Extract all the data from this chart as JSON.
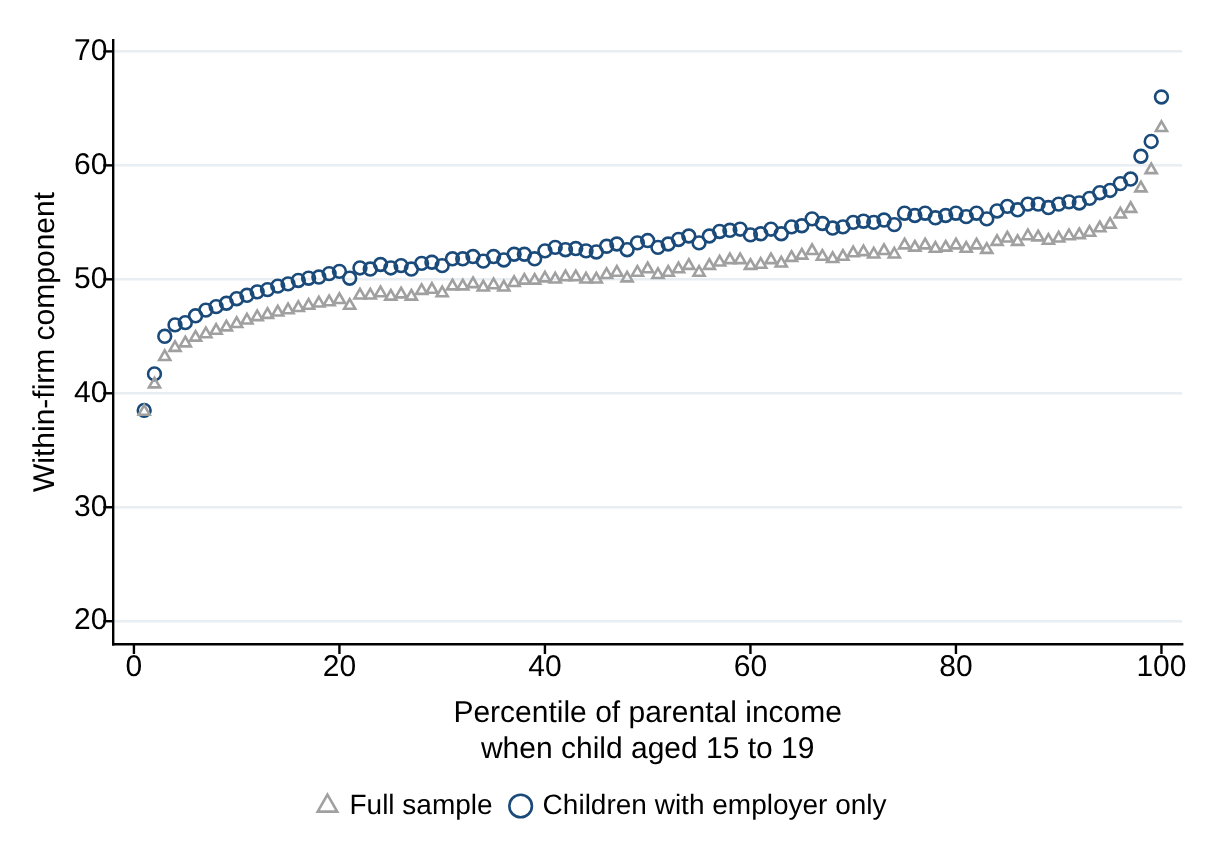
{
  "chart_data": {
    "type": "scatter",
    "xlabel": "Percentile of parental income\nwhen child aged 15 to 19",
    "ylabel": "Within-firm component",
    "xlim": [
      -2,
      102
    ],
    "xticks": [
      0,
      20,
      40,
      60,
      80,
      100
    ],
    "ylim": [
      18,
      71
    ],
    "yticks": [
      20,
      30,
      40,
      50,
      60,
      70
    ],
    "grid": "y",
    "legend": "bottom",
    "x": [
      1,
      2,
      3,
      4,
      5,
      6,
      7,
      8,
      9,
      10,
      11,
      12,
      13,
      14,
      15,
      16,
      17,
      18,
      19,
      20,
      21,
      22,
      23,
      24,
      25,
      26,
      27,
      28,
      29,
      30,
      31,
      32,
      33,
      34,
      35,
      36,
      37,
      38,
      39,
      40,
      41,
      42,
      43,
      44,
      45,
      46,
      47,
      48,
      49,
      50,
      51,
      52,
      53,
      54,
      55,
      56,
      57,
      58,
      59,
      60,
      61,
      62,
      63,
      64,
      65,
      66,
      67,
      68,
      69,
      70,
      71,
      72,
      73,
      74,
      75,
      76,
      77,
      78,
      79,
      80,
      81,
      82,
      83,
      84,
      85,
      86,
      87,
      88,
      89,
      90,
      91,
      92,
      93,
      94,
      95,
      96,
      97,
      98,
      99,
      100
    ],
    "series": [
      {
        "name": "Full sample",
        "color": "#a0a0a0",
        "marker": "triangle",
        "values": [
          38.4,
          40.8,
          43.2,
          44,
          44.4,
          44.9,
          45.2,
          45.5,
          45.8,
          46.1,
          46.4,
          46.7,
          46.9,
          47.1,
          47.3,
          47.5,
          47.7,
          47.9,
          48,
          48.2,
          47.7,
          48.6,
          48.6,
          48.8,
          48.5,
          48.7,
          48.5,
          49,
          49.1,
          48.8,
          49.4,
          49.4,
          49.6,
          49.3,
          49.5,
          49.3,
          49.7,
          49.9,
          49.9,
          50.1,
          50,
          50.2,
          50.2,
          50,
          50,
          50.4,
          50.6,
          50.1,
          50.6,
          50.9,
          50.4,
          50.6,
          50.9,
          51.2,
          50.6,
          51.2,
          51.5,
          51.7,
          51.7,
          51.2,
          51.3,
          51.7,
          51.4,
          51.9,
          52.1,
          52.5,
          52,
          51.8,
          52,
          52.3,
          52.4,
          52.2,
          52.5,
          52.2,
          53,
          52.8,
          53,
          52.7,
          52.8,
          53,
          52.7,
          53,
          52.6,
          53.3,
          53.6,
          53.3,
          53.8,
          53.7,
          53.4,
          53.6,
          53.8,
          53.9,
          54.1,
          54.5,
          54.8,
          55.7,
          56.2,
          58,
          59.6,
          63.3
        ]
      },
      {
        "name": "Children with employer only",
        "color": "#1a4a7a",
        "marker": "circle",
        "values": [
          38.5,
          41.7,
          45,
          46,
          46.2,
          46.8,
          47.3,
          47.6,
          47.9,
          48.3,
          48.6,
          48.9,
          49.1,
          49.4,
          49.6,
          49.9,
          50.1,
          50.2,
          50.5,
          50.7,
          50.1,
          51,
          50.9,
          51.3,
          51,
          51.2,
          50.9,
          51.4,
          51.5,
          51.2,
          51.8,
          51.8,
          52,
          51.6,
          52,
          51.7,
          52.2,
          52.2,
          51.8,
          52.5,
          52.8,
          52.6,
          52.7,
          52.5,
          52.4,
          52.9,
          53.1,
          52.6,
          53.2,
          53.4,
          52.8,
          53.1,
          53.5,
          53.8,
          53.2,
          53.8,
          54.2,
          54.3,
          54.4,
          53.9,
          54,
          54.4,
          54,
          54.6,
          54.7,
          55.3,
          54.9,
          54.5,
          54.6,
          55,
          55.1,
          55,
          55.2,
          54.8,
          55.8,
          55.6,
          55.8,
          55.4,
          55.6,
          55.8,
          55.5,
          55.8,
          55.3,
          56,
          56.4,
          56.1,
          56.6,
          56.6,
          56.3,
          56.6,
          56.8,
          56.7,
          57.1,
          57.6,
          57.8,
          58.4,
          58.8,
          60.8,
          62.1,
          66
        ]
      }
    ]
  }
}
